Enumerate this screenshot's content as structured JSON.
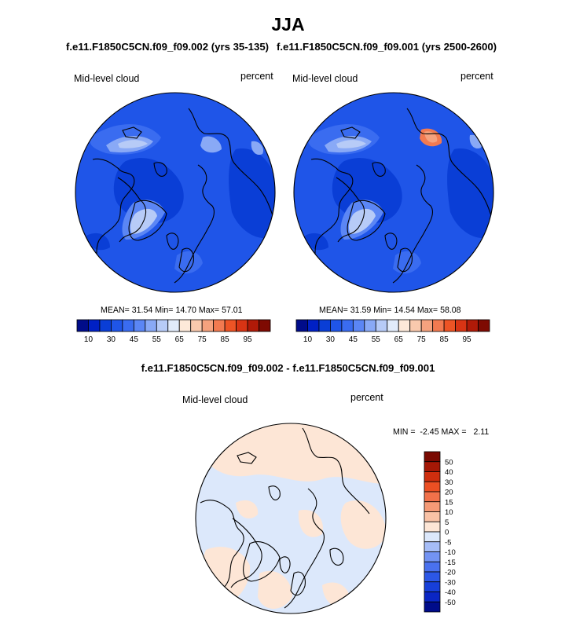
{
  "figure": {
    "title": "JJA",
    "panel_left": {
      "case": "f.e11.F1850C5CN.f09_f09.002 (yrs 35-135)",
      "variable": "Mid-level cloud",
      "units": "percent",
      "stats": {
        "mean_label": "MEAN=",
        "mean": "31.54",
        "min_label": "Min=",
        "min": "14.70",
        "max_label": "Max=",
        "max": "57.01"
      }
    },
    "panel_right": {
      "case": "f.e11.F1850C5CN.f09_f09.001 (yrs 2500-2600)",
      "variable": "Mid-level cloud",
      "units": "percent",
      "stats": {
        "mean_label": "MEAN=",
        "mean": "31.59",
        "min_label": "Min=",
        "min": "14.54",
        "max_label": "Max=",
        "max": "58.08"
      }
    },
    "diff_title": "f.e11.F1850C5CN.f09_f09.002 - f.e11.F1850C5CN.f09_f09.001",
    "panel_diff": {
      "variable": "Mid-level cloud",
      "units": "percent",
      "minmax_text": "MIN =  -2.45 MAX =   2.11"
    }
  },
  "chart_data": [
    {
      "type": "heatmap",
      "projection": "north polar stereographic",
      "variable": "Mid-level cloud",
      "units": "percent",
      "mean": 31.54,
      "min": 14.7,
      "max": 57.01,
      "colorbar_levels": [
        5,
        10,
        20,
        30,
        40,
        45,
        50,
        55,
        60,
        65,
        70,
        75,
        80,
        85,
        90,
        95
      ],
      "colorbar_tick_labels": [
        "10",
        "30",
        "45",
        "55",
        "65",
        "75",
        "85",
        "95"
      ],
      "colorbar_colors": [
        "#000c8a",
        "#0020c5",
        "#0a3ed6",
        "#1f55e8",
        "#3a6cf0",
        "#5b86f5",
        "#89a9f6",
        "#b7cbf7",
        "#e1ebfb",
        "#fde9d9",
        "#f9c9ad",
        "#f5a27e",
        "#f27a50",
        "#ed5425",
        "#d83414",
        "#b01a08",
        "#7e0a02"
      ]
    },
    {
      "type": "heatmap",
      "projection": "north polar stereographic",
      "variable": "Mid-level cloud",
      "units": "percent",
      "mean": 31.59,
      "min": 14.54,
      "max": 58.08,
      "colorbar_levels": [
        5,
        10,
        20,
        30,
        40,
        45,
        50,
        55,
        60,
        65,
        70,
        75,
        80,
        85,
        90,
        95
      ],
      "colorbar_tick_labels": [
        "10",
        "30",
        "45",
        "55",
        "65",
        "75",
        "85",
        "95"
      ],
      "colorbar_colors": [
        "#000c8a",
        "#0020c5",
        "#0a3ed6",
        "#1f55e8",
        "#3a6cf0",
        "#5b86f5",
        "#89a9f6",
        "#b7cbf7",
        "#e1ebfb",
        "#fde9d9",
        "#f9c9ad",
        "#f5a27e",
        "#f27a50",
        "#ed5425",
        "#d83414",
        "#b01a08",
        "#7e0a02"
      ]
    },
    {
      "type": "heatmap",
      "projection": "north polar stereographic",
      "variable": "Mid-level cloud",
      "units": "percent",
      "min": -2.45,
      "max": 2.11,
      "colorbar_levels": [
        -50,
        -40,
        -30,
        -20,
        -15,
        -10,
        -5,
        0,
        5,
        10,
        15,
        20,
        30,
        40,
        50
      ],
      "colorbar_tick_labels": [
        "-50",
        "-40",
        "-30",
        "-20",
        "-15",
        "-10",
        "-5",
        "0",
        "5",
        "10",
        "15",
        "20",
        "30",
        "40",
        "50"
      ],
      "colorbar_colors": [
        "#000c8a",
        "#0a26c4",
        "#173fd9",
        "#2c57e6",
        "#4a71ee",
        "#7393f3",
        "#a6bdf7",
        "#dce8fb",
        "#fde6d6",
        "#f9c2a6",
        "#f59a76",
        "#f1714a",
        "#ec4f23",
        "#cf2e0e",
        "#a51806",
        "#7a0a02"
      ]
    }
  ]
}
